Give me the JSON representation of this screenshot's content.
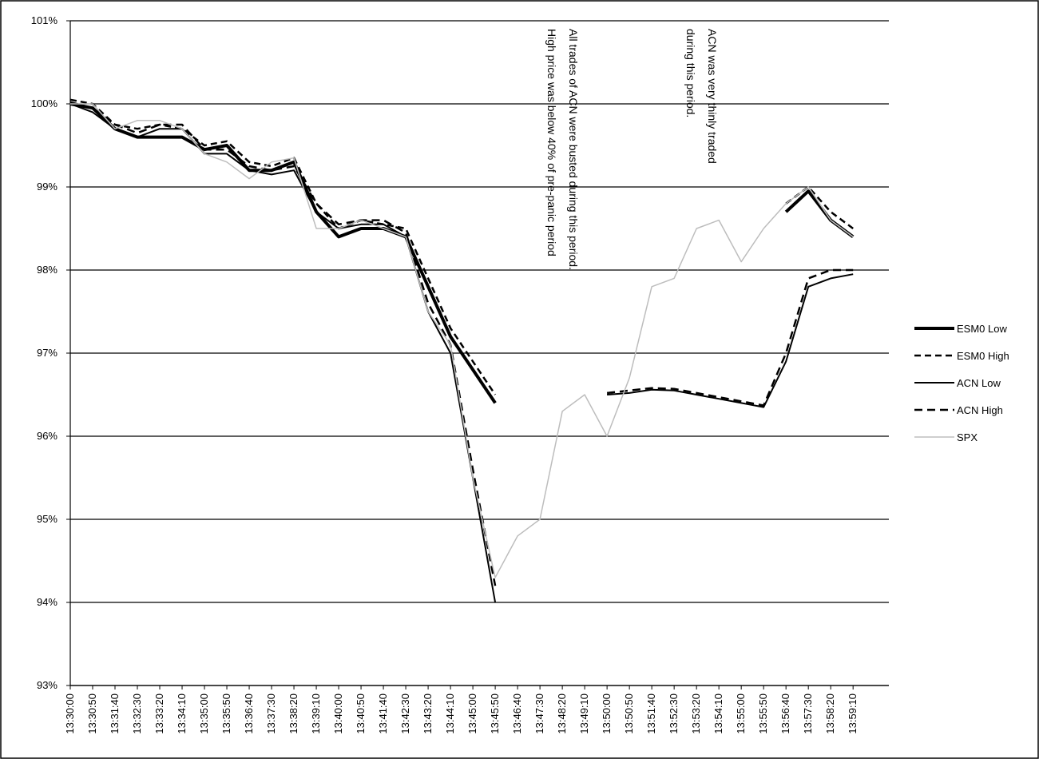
{
  "chart_data": {
    "type": "line",
    "categories": [
      "13:30:00",
      "13:30:50",
      "13:31:40",
      "13:32:30",
      "13:33:20",
      "13:34:10",
      "13:35:00",
      "13:35:50",
      "13:36:40",
      "13:37:30",
      "13:38:20",
      "13:39:10",
      "13:40:00",
      "13:40:50",
      "13:41:40",
      "13:42:30",
      "13:43:20",
      "13:44:10",
      "13:45:00",
      "13:45:50",
      "13:46:40",
      "13:47:30",
      "13:48:20",
      "13:49:10",
      "13:50:00",
      "13:50:50",
      "13:51:40",
      "13:52:30",
      "13:53:20",
      "13:54:10",
      "13:55:00",
      "13:55:50",
      "13:56:40",
      "13:57:30",
      "13:58:20",
      "13:59:10"
    ],
    "series": [
      {
        "name": "ESM0 Low",
        "color": "#000000",
        "width": 4,
        "dash": "none",
        "values": [
          100,
          99.95,
          99.7,
          99.6,
          99.6,
          99.6,
          99.45,
          99.5,
          99.2,
          99.2,
          99.3,
          98.7,
          98.4,
          98.5,
          98.5,
          98.4,
          97.8,
          97.2,
          96.8,
          96.4,
          null,
          null,
          null,
          null,
          null,
          null,
          null,
          null,
          null,
          null,
          null,
          null,
          98.7,
          98.95,
          98.6,
          98.4
        ]
      },
      {
        "name": "ESM0 High",
        "color": "#000000",
        "width": 2.5,
        "dash": "8 5",
        "values": [
          100.05,
          100,
          99.75,
          99.7,
          99.75,
          99.7,
          99.5,
          99.55,
          99.3,
          99.25,
          99.35,
          98.8,
          98.5,
          98.6,
          98.55,
          98.5,
          97.9,
          97.3,
          96.9,
          96.5,
          null,
          null,
          null,
          null,
          null,
          null,
          null,
          null,
          null,
          null,
          null,
          null,
          98.8,
          99.0,
          98.7,
          98.5
        ]
      },
      {
        "name": "ACN Low",
        "color": "#000000",
        "width": 2,
        "dash": "none",
        "values": [
          100,
          99.9,
          99.7,
          99.6,
          99.7,
          99.7,
          99.4,
          99.4,
          99.2,
          99.15,
          99.2,
          98.7,
          98.5,
          98.55,
          98.55,
          98.4,
          97.5,
          97.0,
          95.5,
          94.0,
          null,
          null,
          null,
          null,
          96.5,
          96.52,
          96.56,
          96.55,
          96.5,
          96.45,
          96.4,
          96.35,
          96.9,
          97.8,
          97.9,
          97.95
        ]
      },
      {
        "name": "ACN High",
        "color": "#000000",
        "width": 2.5,
        "dash": "10 6",
        "values": [
          100.02,
          99.95,
          99.75,
          99.65,
          99.75,
          99.75,
          99.45,
          99.45,
          99.25,
          99.2,
          99.25,
          98.8,
          98.55,
          98.6,
          98.6,
          98.45,
          97.6,
          97.1,
          95.6,
          94.2,
          null,
          null,
          null,
          null,
          96.52,
          96.55,
          96.58,
          96.57,
          96.52,
          96.47,
          96.42,
          96.37,
          97.0,
          97.9,
          98.0,
          98.0
        ]
      },
      {
        "name": "SPX",
        "color": "#bdbdbd",
        "width": 1.5,
        "dash": "none",
        "values": [
          100,
          100,
          99.7,
          99.8,
          99.8,
          99.7,
          99.4,
          99.3,
          99.1,
          99.3,
          99.35,
          98.5,
          98.5,
          98.6,
          98.5,
          98.4,
          97.5,
          97.1,
          95.5,
          94.3,
          94.8,
          95.0,
          96.3,
          96.5,
          96.0,
          96.7,
          97.8,
          97.9,
          98.5,
          98.6,
          98.1,
          98.5,
          98.8,
          99.0,
          98.6,
          98.4
        ]
      }
    ],
    "ylim": [
      93,
      101
    ],
    "yticks": [
      {
        "value": 93,
        "label": "93%"
      },
      {
        "value": 94,
        "label": "94%"
      },
      {
        "value": 95,
        "label": "95%"
      },
      {
        "value": 96,
        "label": "96%"
      },
      {
        "value": 97,
        "label": "97%"
      },
      {
        "value": 98,
        "label": "98%"
      },
      {
        "value": 99,
        "label": "99%"
      },
      {
        "value": 100,
        "label": "100%"
      },
      {
        "value": 101,
        "label": "101%"
      }
    ],
    "grid": true,
    "legend": "right",
    "annotations": [
      "All trades of ACN were busted during this period.",
      "High price was below 40% of pre-panic period",
      "ACN was very thinly traded",
      "during this period."
    ]
  }
}
